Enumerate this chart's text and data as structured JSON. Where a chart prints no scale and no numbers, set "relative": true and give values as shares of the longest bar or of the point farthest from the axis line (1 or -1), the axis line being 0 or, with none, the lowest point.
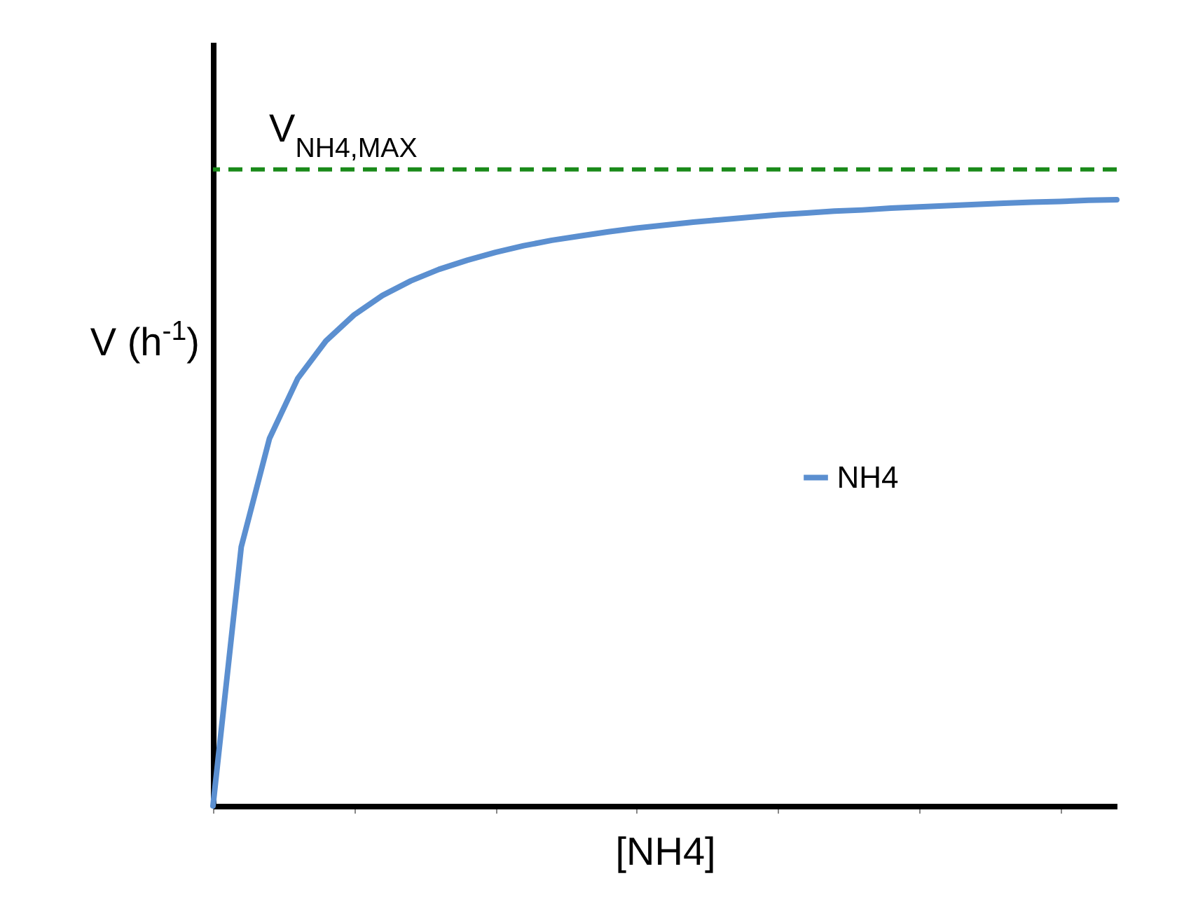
{
  "chart_data": {
    "type": "line",
    "relative": true,
    "xlabel": "[NH4]",
    "ylabel": "V (h$^{-1}$)",
    "categories": [
      null,
      null,
      null,
      null,
      null,
      null,
      null,
      null,
      null,
      null,
      null,
      null,
      null,
      null,
      null,
      null,
      null,
      null,
      null,
      null,
      null,
      null,
      null,
      null,
      null,
      null,
      null,
      null,
      null,
      null,
      null,
      null,
      null
    ],
    "series": [
      {
        "name": "NH4",
        "color": "#5b8fd0",
        "values": [
          0,
          0.427,
          0.606,
          0.705,
          0.767,
          0.81,
          0.842,
          0.866,
          0.885,
          0.9,
          0.913,
          0.924,
          0.933,
          0.94,
          0.947,
          0.953,
          0.958,
          0.963,
          0.967,
          0.971,
          0.975,
          0.978,
          0.981,
          0.983,
          0.986,
          0.988,
          0.99,
          0.992,
          0.994,
          0.996,
          0.997,
          0.999,
          1.0
        ]
      }
    ],
    "ref_lines": [
      {
        "axis": "y",
        "value": 1.05,
        "label": "V$_{NH4,MAX}$",
        "color": "#1a8a1a",
        "line_style": "dashed"
      }
    ],
    "legend": "right",
    "line_style": "solid",
    "marker": "none",
    "grid": false
  }
}
